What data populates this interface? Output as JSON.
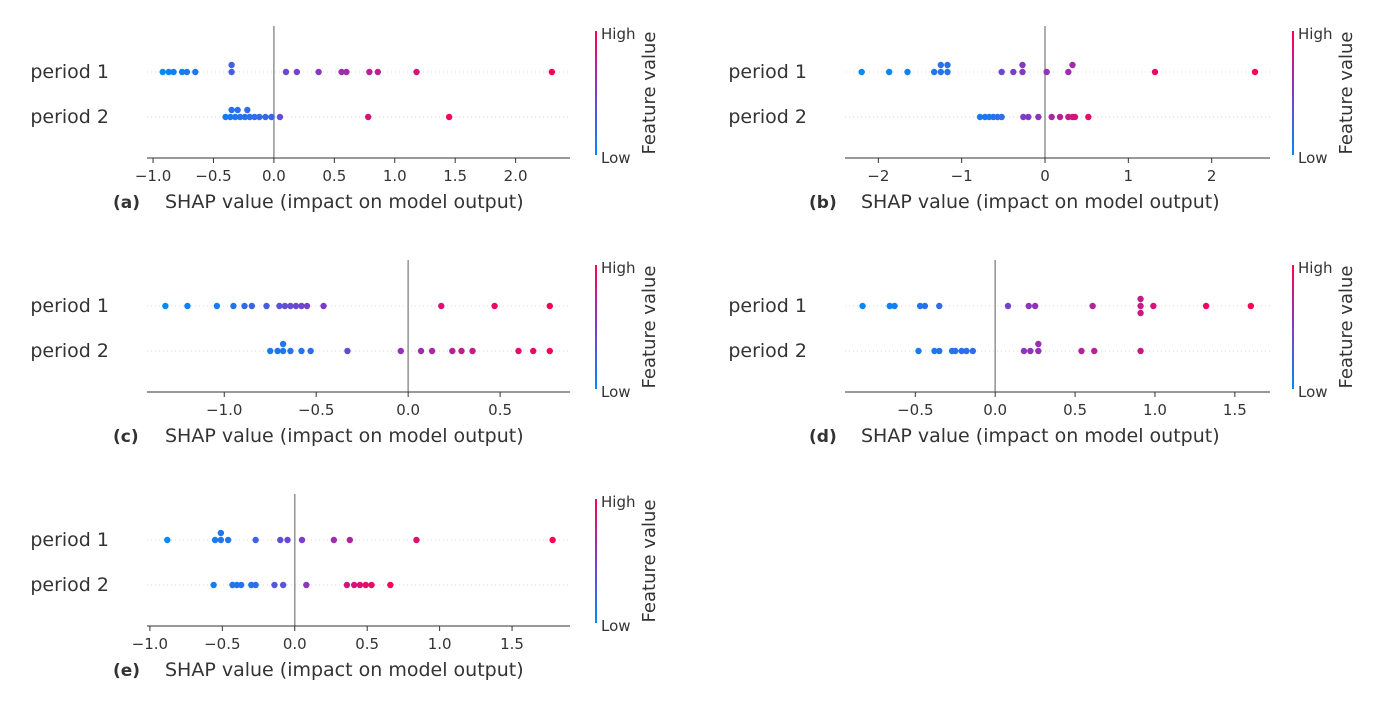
{
  "figure": {
    "feature_value_label": "Feature value",
    "high_label": "High",
    "low_label": "Low",
    "colormap": [
      "#008afb",
      "#7d3cc9",
      "#ff0052"
    ]
  },
  "chart_data": [
    {
      "panel_label": "(a)",
      "type": "scatter",
      "chart_kind": "shap-beeswarm",
      "xlabel": "SHAP value (impact on model output)",
      "categories": [
        "period 1",
        "period 2"
      ],
      "xticks": [
        -1.0,
        -0.5,
        0.0,
        0.5,
        1.0,
        1.5,
        2.0
      ],
      "xtick_labels": [
        "−1.0",
        "−0.5",
        "0.0",
        "0.5",
        "1.0",
        "1.5",
        "2.0"
      ],
      "xlim": [
        -1.05,
        2.45
      ],
      "series": [
        {
          "points": [
            {
              "x": -0.92,
              "f": 0.0,
              "dy": 0
            },
            {
              "x": -0.87,
              "f": 0.03,
              "dy": 0
            },
            {
              "x": -0.83,
              "f": 0.05,
              "dy": 0
            },
            {
              "x": -0.76,
              "f": 0.07,
              "dy": 0
            },
            {
              "x": -0.72,
              "f": 0.09,
              "dy": 0
            },
            {
              "x": -0.65,
              "f": 0.12,
              "dy": 0
            },
            {
              "x": -0.35,
              "f": 0.27,
              "dy": -1
            },
            {
              "x": -0.35,
              "f": 0.27,
              "dy": 0
            },
            {
              "x": 0.1,
              "f": 0.42,
              "dy": 0
            },
            {
              "x": 0.19,
              "f": 0.47,
              "dy": 0
            },
            {
              "x": 0.37,
              "f": 0.55,
              "dy": 0
            },
            {
              "x": 0.56,
              "f": 0.62,
              "dy": 0
            },
            {
              "x": 0.6,
              "f": 0.64,
              "dy": 0
            },
            {
              "x": 0.79,
              "f": 0.72,
              "dy": 0
            },
            {
              "x": 0.86,
              "f": 0.75,
              "dy": 0
            },
            {
              "x": 1.18,
              "f": 0.85,
              "dy": 0
            },
            {
              "x": 2.3,
              "f": 1.0,
              "dy": 0
            }
          ]
        },
        {
          "points": [
            {
              "x": -0.35,
              "f": 0.16,
              "dy": -1
            },
            {
              "x": -0.3,
              "f": 0.17,
              "dy": -1
            },
            {
              "x": -0.22,
              "f": 0.19,
              "dy": -1
            },
            {
              "x": -0.4,
              "f": 0.1,
              "dy": 0
            },
            {
              "x": -0.36,
              "f": 0.12,
              "dy": 0
            },
            {
              "x": -0.32,
              "f": 0.14,
              "dy": 0
            },
            {
              "x": -0.28,
              "f": 0.15,
              "dy": 0
            },
            {
              "x": -0.24,
              "f": 0.16,
              "dy": 0
            },
            {
              "x": -0.2,
              "f": 0.17,
              "dy": 0
            },
            {
              "x": -0.16,
              "f": 0.18,
              "dy": 0
            },
            {
              "x": -0.12,
              "f": 0.19,
              "dy": 0
            },
            {
              "x": -0.07,
              "f": 0.21,
              "dy": 0
            },
            {
              "x": -0.02,
              "f": 0.23,
              "dy": 0
            },
            {
              "x": 0.05,
              "f": 0.4,
              "dy": 0
            },
            {
              "x": 0.78,
              "f": 0.85,
              "dy": 0
            },
            {
              "x": 1.45,
              "f": 0.95,
              "dy": 0
            }
          ]
        }
      ]
    },
    {
      "panel_label": "(b)",
      "type": "scatter",
      "chart_kind": "shap-beeswarm",
      "xlabel": "SHAP value (impact on model output)",
      "categories": [
        "period 1",
        "period 2"
      ],
      "xticks": [
        -2,
        -1,
        0,
        1,
        2
      ],
      "xtick_labels": [
        "−2",
        "−1",
        "0",
        "1",
        "2"
      ],
      "xlim": [
        -2.4,
        2.7
      ],
      "series": [
        {
          "points": [
            {
              "x": -2.2,
              "f": 0.0,
              "dy": 0
            },
            {
              "x": -1.87,
              "f": 0.04,
              "dy": 0
            },
            {
              "x": -1.65,
              "f": 0.07,
              "dy": 0
            },
            {
              "x": -1.33,
              "f": 0.12,
              "dy": 0
            },
            {
              "x": -1.25,
              "f": 0.15,
              "dy": -1
            },
            {
              "x": -1.17,
              "f": 0.17,
              "dy": -1
            },
            {
              "x": -1.25,
              "f": 0.15,
              "dy": 0
            },
            {
              "x": -1.17,
              "f": 0.17,
              "dy": 0
            },
            {
              "x": -0.52,
              "f": 0.42,
              "dy": 0
            },
            {
              "x": -0.38,
              "f": 0.48,
              "dy": 0
            },
            {
              "x": -0.27,
              "f": 0.52,
              "dy": -1
            },
            {
              "x": -0.27,
              "f": 0.52,
              "dy": 0
            },
            {
              "x": 0.02,
              "f": 0.58,
              "dy": 0
            },
            {
              "x": 0.28,
              "f": 0.62,
              "dy": 0
            },
            {
              "x": 0.33,
              "f": 0.64,
              "dy": -1
            },
            {
              "x": 1.32,
              "f": 0.93,
              "dy": 0
            },
            {
              "x": 2.52,
              "f": 1.0,
              "dy": 0
            }
          ]
        },
        {
          "points": [
            {
              "x": -0.78,
              "f": 0.1,
              "dy": 0
            },
            {
              "x": -0.72,
              "f": 0.12,
              "dy": 0
            },
            {
              "x": -0.67,
              "f": 0.13,
              "dy": 0
            },
            {
              "x": -0.62,
              "f": 0.14,
              "dy": 0
            },
            {
              "x": -0.57,
              "f": 0.15,
              "dy": 0
            },
            {
              "x": -0.52,
              "f": 0.17,
              "dy": 0
            },
            {
              "x": -0.26,
              "f": 0.5,
              "dy": 0
            },
            {
              "x": -0.2,
              "f": 0.53,
              "dy": 0
            },
            {
              "x": -0.08,
              "f": 0.57,
              "dy": 0
            },
            {
              "x": 0.08,
              "f": 0.66,
              "dy": 0
            },
            {
              "x": 0.18,
              "f": 0.72,
              "dy": 0
            },
            {
              "x": 0.28,
              "f": 0.78,
              "dy": 0
            },
            {
              "x": 0.33,
              "f": 0.8,
              "dy": 0
            },
            {
              "x": 0.36,
              "f": 0.82,
              "dy": 0
            },
            {
              "x": 0.52,
              "f": 0.9,
              "dy": 0
            }
          ]
        }
      ]
    },
    {
      "panel_label": "(c)",
      "type": "scatter",
      "chart_kind": "shap-beeswarm",
      "xlabel": "SHAP value (impact on model output)",
      "categories": [
        "period 1",
        "period 2"
      ],
      "xticks": [
        -1.0,
        -0.5,
        0.0,
        0.5
      ],
      "xtick_labels": [
        "−1.0",
        "−0.5",
        "0.0",
        "0.5"
      ],
      "xlim": [
        -1.42,
        0.88
      ],
      "series": [
        {
          "points": [
            {
              "x": -1.32,
              "f": 0.0,
              "dy": 0
            },
            {
              "x": -1.2,
              "f": 0.04,
              "dy": 0
            },
            {
              "x": -1.04,
              "f": 0.08,
              "dy": 0
            },
            {
              "x": -0.95,
              "f": 0.14,
              "dy": 0
            },
            {
              "x": -0.89,
              "f": 0.2,
              "dy": 0
            },
            {
              "x": -0.85,
              "f": 0.24,
              "dy": 0
            },
            {
              "x": -0.77,
              "f": 0.3,
              "dy": 0
            },
            {
              "x": -0.7,
              "f": 0.36,
              "dy": 0
            },
            {
              "x": -0.67,
              "f": 0.38,
              "dy": 0
            },
            {
              "x": -0.64,
              "f": 0.4,
              "dy": 0
            },
            {
              "x": -0.61,
              "f": 0.42,
              "dy": 0
            },
            {
              "x": -0.58,
              "f": 0.44,
              "dy": 0
            },
            {
              "x": -0.55,
              "f": 0.46,
              "dy": 0
            },
            {
              "x": -0.46,
              "f": 0.5,
              "dy": 0
            },
            {
              "x": 0.18,
              "f": 0.85,
              "dy": 0
            },
            {
              "x": 0.47,
              "f": 0.92,
              "dy": 0
            },
            {
              "x": 0.77,
              "f": 1.0,
              "dy": 0
            }
          ]
        },
        {
          "points": [
            {
              "x": -0.75,
              "f": 0.1,
              "dy": 0
            },
            {
              "x": -0.71,
              "f": 0.12,
              "dy": 0
            },
            {
              "x": -0.68,
              "f": 0.13,
              "dy": -1
            },
            {
              "x": -0.68,
              "f": 0.13,
              "dy": 0
            },
            {
              "x": -0.64,
              "f": 0.14,
              "dy": 0
            },
            {
              "x": -0.58,
              "f": 0.15,
              "dy": 0
            },
            {
              "x": -0.53,
              "f": 0.17,
              "dy": 0
            },
            {
              "x": -0.33,
              "f": 0.42,
              "dy": 0
            },
            {
              "x": -0.04,
              "f": 0.58,
              "dy": 0
            },
            {
              "x": 0.07,
              "f": 0.63,
              "dy": 0
            },
            {
              "x": 0.13,
              "f": 0.66,
              "dy": 0
            },
            {
              "x": 0.24,
              "f": 0.72,
              "dy": 0
            },
            {
              "x": 0.29,
              "f": 0.75,
              "dy": 0
            },
            {
              "x": 0.35,
              "f": 0.78,
              "dy": 0
            },
            {
              "x": 0.6,
              "f": 0.88,
              "dy": 0
            },
            {
              "x": 0.68,
              "f": 0.92,
              "dy": 0
            },
            {
              "x": 0.77,
              "f": 0.96,
              "dy": 0
            }
          ]
        }
      ]
    },
    {
      "panel_label": "(d)",
      "type": "scatter",
      "chart_kind": "shap-beeswarm",
      "xlabel": "SHAP value (impact on model output)",
      "categories": [
        "period 1",
        "period 2"
      ],
      "xticks": [
        -0.5,
        0.0,
        0.5,
        1.0,
        1.5
      ],
      "xtick_labels": [
        "−0.5",
        "0.0",
        "0.5",
        "1.0",
        "1.5"
      ],
      "xlim": [
        -0.94,
        1.72
      ],
      "series": [
        {
          "points": [
            {
              "x": -0.83,
              "f": 0.0,
              "dy": 0
            },
            {
              "x": -0.66,
              "f": 0.06,
              "dy": 0
            },
            {
              "x": -0.63,
              "f": 0.08,
              "dy": 0
            },
            {
              "x": -0.47,
              "f": 0.14,
              "dy": 0
            },
            {
              "x": -0.44,
              "f": 0.16,
              "dy": 0
            },
            {
              "x": -0.35,
              "f": 0.2,
              "dy": 0
            },
            {
              "x": 0.08,
              "f": 0.45,
              "dy": 0
            },
            {
              "x": 0.21,
              "f": 0.55,
              "dy": 0
            },
            {
              "x": 0.25,
              "f": 0.58,
              "dy": 0
            },
            {
              "x": 0.61,
              "f": 0.68,
              "dy": 0
            },
            {
              "x": 0.91,
              "f": 0.78,
              "dy": -1
            },
            {
              "x": 0.91,
              "f": 0.78,
              "dy": 0
            },
            {
              "x": 0.91,
              "f": 0.78,
              "dy": 1
            },
            {
              "x": 0.99,
              "f": 0.82,
              "dy": 0
            },
            {
              "x": 1.32,
              "f": 0.92,
              "dy": 0
            },
            {
              "x": 1.6,
              "f": 1.0,
              "dy": 0
            }
          ]
        },
        {
          "points": [
            {
              "x": -0.48,
              "f": 0.1,
              "dy": 0
            },
            {
              "x": -0.38,
              "f": 0.12,
              "dy": 0
            },
            {
              "x": -0.35,
              "f": 0.14,
              "dy": 0
            },
            {
              "x": -0.27,
              "f": 0.15,
              "dy": 0
            },
            {
              "x": -0.25,
              "f": 0.16,
              "dy": 0
            },
            {
              "x": -0.21,
              "f": 0.17,
              "dy": 0
            },
            {
              "x": -0.18,
              "f": 0.18,
              "dy": 0
            },
            {
              "x": -0.14,
              "f": 0.19,
              "dy": 0
            },
            {
              "x": 0.18,
              "f": 0.55,
              "dy": 0
            },
            {
              "x": 0.22,
              "f": 0.58,
              "dy": 0
            },
            {
              "x": 0.27,
              "f": 0.6,
              "dy": -1
            },
            {
              "x": 0.27,
              "f": 0.6,
              "dy": 0
            },
            {
              "x": 0.54,
              "f": 0.7,
              "dy": 0
            },
            {
              "x": 0.62,
              "f": 0.74,
              "dy": 0
            },
            {
              "x": 0.91,
              "f": 0.8,
              "dy": 0
            }
          ]
        }
      ]
    },
    {
      "panel_label": "(e)",
      "type": "scatter",
      "chart_kind": "shap-beeswarm",
      "xlabel": "SHAP value (impact on model output)",
      "categories": [
        "period 1",
        "period 2"
      ],
      "xticks": [
        -1.0,
        -0.5,
        0.0,
        0.5,
        1.0,
        1.5
      ],
      "xtick_labels": [
        "−1.0",
        "−0.5",
        "0.0",
        "0.5",
        "1.0",
        "1.5"
      ],
      "xlim": [
        -1.02,
        1.9
      ],
      "series": [
        {
          "points": [
            {
              "x": -0.88,
              "f": 0.0,
              "dy": 0
            },
            {
              "x": -0.55,
              "f": 0.1,
              "dy": 0
            },
            {
              "x": -0.51,
              "f": 0.12,
              "dy": -1
            },
            {
              "x": -0.51,
              "f": 0.12,
              "dy": 0
            },
            {
              "x": -0.46,
              "f": 0.14,
              "dy": 0
            },
            {
              "x": -0.27,
              "f": 0.25,
              "dy": 0
            },
            {
              "x": -0.1,
              "f": 0.38,
              "dy": 0
            },
            {
              "x": -0.05,
              "f": 0.42,
              "dy": 0
            },
            {
              "x": 0.05,
              "f": 0.5,
              "dy": 0
            },
            {
              "x": 0.27,
              "f": 0.62,
              "dy": 0
            },
            {
              "x": 0.38,
              "f": 0.68,
              "dy": 0
            },
            {
              "x": 0.84,
              "f": 0.88,
              "dy": 0
            },
            {
              "x": 1.78,
              "f": 1.0,
              "dy": 0
            }
          ]
        },
        {
          "points": [
            {
              "x": -0.56,
              "f": 0.08,
              "dy": 0
            },
            {
              "x": -0.43,
              "f": 0.12,
              "dy": 0
            },
            {
              "x": -0.4,
              "f": 0.13,
              "dy": 0
            },
            {
              "x": -0.37,
              "f": 0.14,
              "dy": 0
            },
            {
              "x": -0.3,
              "f": 0.16,
              "dy": 0
            },
            {
              "x": -0.27,
              "f": 0.17,
              "dy": 0
            },
            {
              "x": -0.14,
              "f": 0.32,
              "dy": 0
            },
            {
              "x": -0.08,
              "f": 0.36,
              "dy": 0
            },
            {
              "x": 0.08,
              "f": 0.55,
              "dy": 0
            },
            {
              "x": 0.36,
              "f": 0.82,
              "dy": 0
            },
            {
              "x": 0.41,
              "f": 0.85,
              "dy": 0
            },
            {
              "x": 0.45,
              "f": 0.88,
              "dy": 0
            },
            {
              "x": 0.49,
              "f": 0.9,
              "dy": 0
            },
            {
              "x": 0.53,
              "f": 0.92,
              "dy": 0
            },
            {
              "x": 0.66,
              "f": 0.97,
              "dy": 0
            }
          ]
        }
      ]
    }
  ]
}
